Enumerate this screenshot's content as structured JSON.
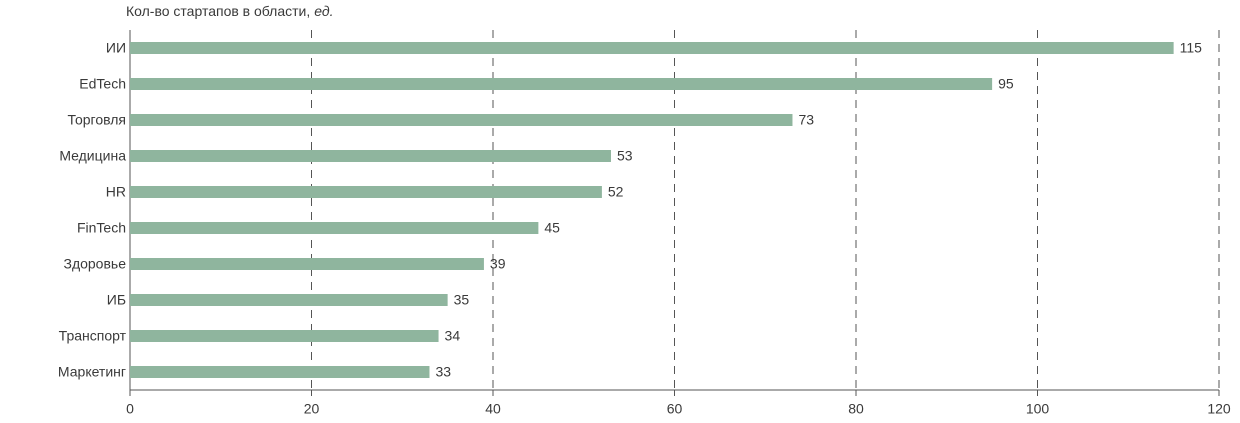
{
  "chart_data": {
    "type": "bar",
    "orientation": "horizontal",
    "title": "Кол-во стартапов в области,",
    "unit": "ед.",
    "categories": [
      "ИИ",
      "EdTech",
      "Торговля",
      "Медицина",
      "HR",
      "FinTech",
      "Здоровье",
      "ИБ",
      "Транспорт",
      "Маркетинг"
    ],
    "values": [
      115,
      95,
      73,
      53,
      52,
      45,
      39,
      35,
      34,
      33
    ],
    "color": "#8fb59e",
    "xlim": [
      0,
      120
    ],
    "xticks": [
      0,
      20,
      40,
      60,
      80,
      100,
      120
    ],
    "grid": true
  }
}
